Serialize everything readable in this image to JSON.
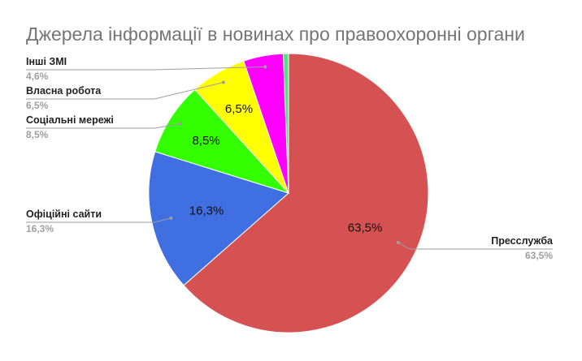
{
  "chart_data": {
    "type": "pie",
    "title": "Джерела інформації в новинах про правоохоронні органи",
    "start_angle_deg": 0,
    "direction": "clockwise",
    "slices": [
      {
        "name": "Пресслужба",
        "value": 63.5,
        "label": "63,5%",
        "color": "#d65151",
        "inside_label": "63,5%"
      },
      {
        "name": "Офіційні сайти",
        "value": 16.3,
        "label": "16,3%",
        "color": "#3f6fe0",
        "inside_label": "16,3%"
      },
      {
        "name": "Соціальні мережі",
        "value": 8.5,
        "label": "8,5%",
        "color": "#33ff00",
        "inside_label": "8,5%"
      },
      {
        "name": "Власна робота",
        "value": 6.5,
        "label": "6,5%",
        "color": "#ffff00",
        "inside_label": "6,5%"
      },
      {
        "name": "Інші ЗМІ",
        "value": 4.6,
        "label": "4,6%",
        "color": "#ff00ff",
        "inside_label": ""
      },
      {
        "name": "",
        "value": 0.6,
        "label": "",
        "color": "#55dd88",
        "inside_label": ""
      }
    ]
  }
}
